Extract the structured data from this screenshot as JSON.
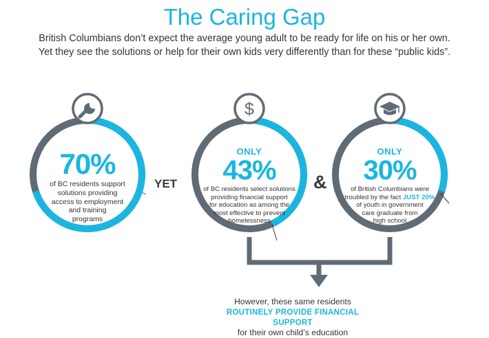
{
  "title": "The Caring Gap",
  "intro": {
    "line1": "British Columbians don’t expect the average young adult to be ready for life on his or her own.",
    "line2": "Yet they see the solutions or help for their own kids very differently than for these “public kids”."
  },
  "stats": [
    {
      "icon": "wrench-icon",
      "only": "",
      "percent": "70%",
      "value": 70,
      "desc": [
        "of BC residents support",
        "solutions providing",
        "access to employment",
        "and training",
        "programs"
      ]
    },
    {
      "icon": "dollar-icon",
      "only": "ONLY",
      "percent": "43%",
      "value": 43,
      "desc": [
        "of BC residents select solutions",
        "providing financial support",
        "for education as among the",
        "most effective to prevent",
        "homelessness"
      ]
    },
    {
      "icon": "graduation-cap-icon",
      "only": "ONLY",
      "percent": "30%",
      "value": 30,
      "desc_a": "of British Columbians were",
      "desc_b_pre": "troubled by the fact ",
      "desc_b_hl": "JUST 20%",
      "desc_rest": [
        "of youth in government",
        "care graduate from",
        "high school"
      ]
    }
  ],
  "connectors": {
    "yet": "YET",
    "and": "&"
  },
  "conclusion": {
    "line1": "However, these same residents",
    "highlight": "ROUTINELY PROVIDE FINANCIAL SUPPORT",
    "line3": "for their own child’s education"
  },
  "colors": {
    "accent": "#1ab6e0",
    "ring": "#5f6b75",
    "text": "#333333"
  }
}
